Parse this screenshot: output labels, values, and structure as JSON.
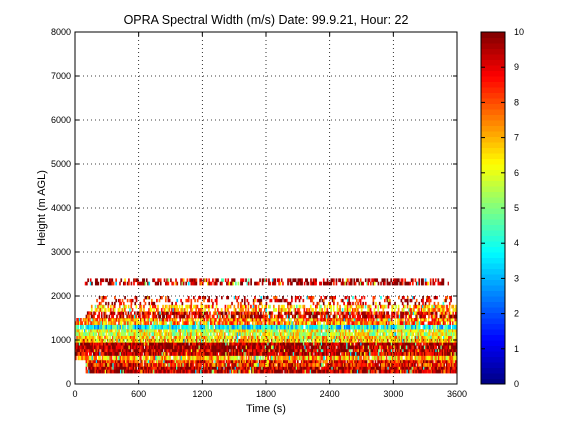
{
  "chart_data": [
    {
      "type": "heatmap",
      "title": "OPRA Spectral Width (m/s)  Date: 99.9.21, Hour: 22",
      "xlabel": "Time (s)",
      "ylabel": "Height (m AGL)",
      "xlim": [
        0,
        3600
      ],
      "ylim": [
        0,
        8000
      ],
      "x_ticks": [
        "0",
        "600",
        "1200",
        "1800",
        "2400",
        "3000",
        "3600"
      ],
      "y_ticks": [
        "0",
        "1000",
        "2000",
        "3000",
        "4000",
        "5000",
        "6000",
        "7000",
        "8000"
      ],
      "grid": true,
      "colormap": "jet",
      "clim": [
        0,
        10
      ],
      "colorbar_ticks": [
        "0",
        "1",
        "2",
        "3",
        "4",
        "5",
        "6",
        "7",
        "8",
        "9",
        "10"
      ],
      "height_bands": [
        {
          "from": 250,
          "to": 400,
          "typical_value": 9.5,
          "coverage": 0.98,
          "x_start": 100,
          "x_end": 3600
        },
        {
          "from": 400,
          "to": 550,
          "typical_value": 8.5,
          "coverage": 0.95,
          "x_start": 100,
          "x_end": 3600
        },
        {
          "from": 550,
          "to": 650,
          "typical_value": 7.0,
          "coverage": 0.9,
          "x_start": 0,
          "x_end": 3600
        },
        {
          "from": 650,
          "to": 800,
          "typical_value": 9.5,
          "coverage": 0.97,
          "x_start": 0,
          "x_end": 3600
        },
        {
          "from": 800,
          "to": 950,
          "typical_value": 9.8,
          "coverage": 0.98,
          "x_start": 0,
          "x_end": 3600
        },
        {
          "from": 950,
          "to": 1100,
          "typical_value": 6.8,
          "coverage": 0.92,
          "x_start": 0,
          "x_end": 3600
        },
        {
          "from": 1100,
          "to": 1250,
          "typical_value": 6.0,
          "coverage": 0.9,
          "x_start": 0,
          "x_end": 3600
        },
        {
          "from": 1250,
          "to": 1350,
          "typical_value": 3.8,
          "coverage": 0.95,
          "x_start": 0,
          "x_end": 3600
        },
        {
          "from": 1350,
          "to": 1500,
          "typical_value": 7.5,
          "coverage": 0.85,
          "x_start": 0,
          "x_end": 3600
        },
        {
          "from": 1500,
          "to": 1650,
          "typical_value": 9.2,
          "coverage": 0.75,
          "x_start": 100,
          "x_end": 3600
        },
        {
          "from": 1650,
          "to": 1800,
          "typical_value": 7.2,
          "coverage": 0.55,
          "x_start": 150,
          "x_end": 3600
        },
        {
          "from": 1800,
          "to": 2000,
          "typical_value": 9.0,
          "coverage": 0.3,
          "x_start": 200,
          "x_end": 3550
        },
        {
          "from": 2250,
          "to": 2400,
          "typical_value": 9.8,
          "coverage": 0.55,
          "x_start": 80,
          "x_end": 3520
        }
      ]
    }
  ]
}
